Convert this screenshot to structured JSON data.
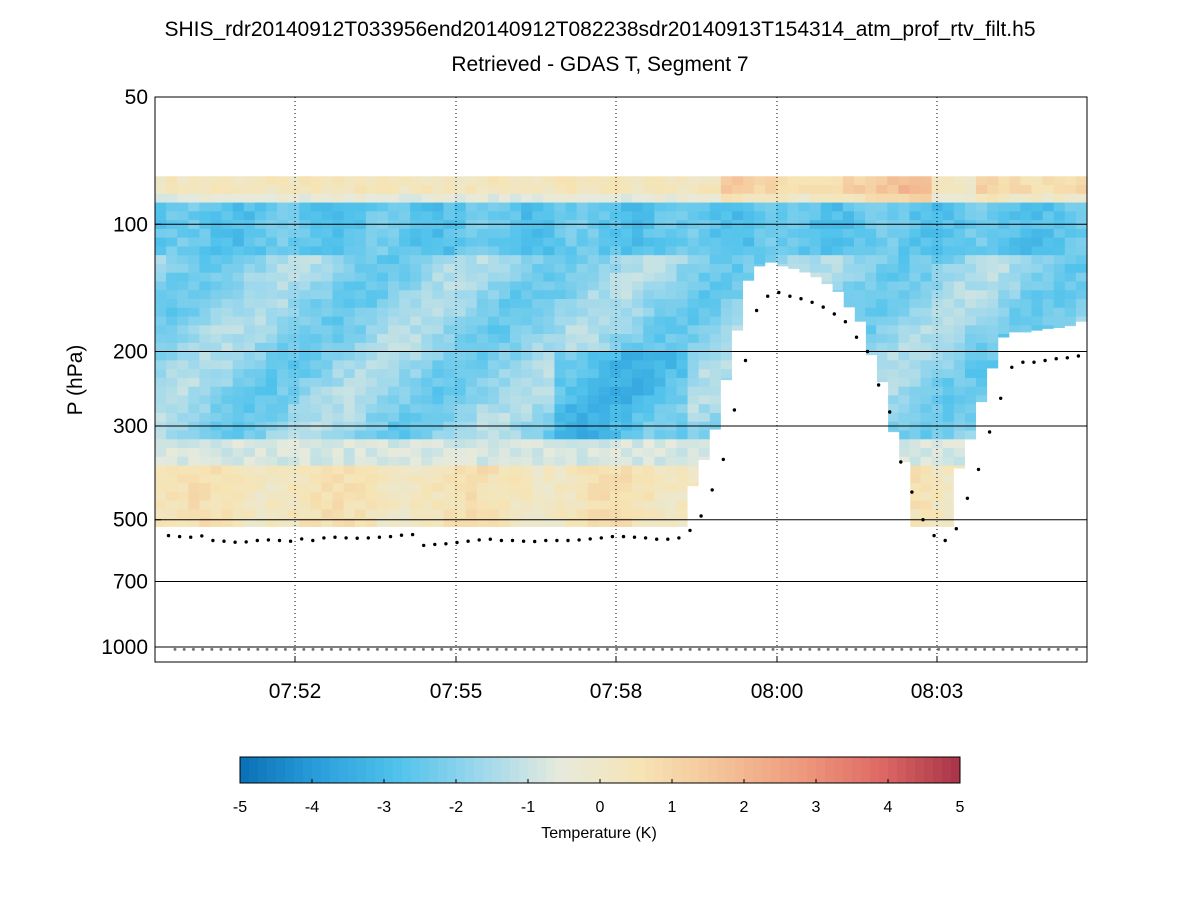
{
  "chart_data": {
    "type": "heatmap",
    "title": "SHIS_rdr20140912T033956end20140912T082238sdr20140913T154314_atm_prof_rtv_filt.h5",
    "subtitle": "Retrieved - GDAS T, Segment 7",
    "ylabel": "P (hPa)",
    "y_scale": "log",
    "y_reversed": true,
    "ylim": [
      50,
      1000
    ],
    "y_ticks": [
      50,
      100,
      200,
      300,
      500,
      700,
      1000
    ],
    "y_tick_labels": [
      "50",
      "100",
      "200",
      "300",
      "500",
      "700",
      "1000"
    ],
    "x_tick_labels": [
      "07:52",
      "07:55",
      "07:58",
      "08:00",
      "08:03"
    ],
    "horizontal_grid": [
      100,
      200,
      300,
      500,
      700,
      1000
    ],
    "colorbar": {
      "label": "Temperature (K)",
      "range": [
        -5,
        5
      ],
      "ticks": [
        -5,
        -4,
        -3,
        -2,
        -1,
        0,
        1,
        2,
        3,
        4,
        5
      ],
      "colors": [
        "#0a6fb5",
        "#2a9fdc",
        "#52c3ec",
        "#9dd8ec",
        "#e6eadd",
        "#f6e4b4",
        "#f4c398",
        "#ee9a7e",
        "#de6a64",
        "#a83348"
      ]
    },
    "cloud_top_pressure": [
      545,
      548,
      550,
      546,
      560,
      562,
      565,
      564,
      560,
      558,
      560,
      562,
      555,
      560,
      552,
      550,
      552,
      553,
      552,
      550,
      548,
      544,
      542,
      575,
      572,
      570,
      566,
      562,
      558,
      556,
      560,
      560,
      562,
      563,
      560,
      560,
      560,
      558,
      555,
      552,
      548,
      548,
      550,
      552,
      556,
      556,
      552,
      530,
      490,
      425,
      360,
      275,
      210,
      160,
      148,
      145,
      148,
      150,
      153,
      157,
      163,
      170,
      185,
      200,
      240,
      278,
      365,
      430,
      500,
      545,
      560,
      525,
      445,
      380,
      310,
      258,
      218,
      212,
      212,
      210,
      208,
      207,
      205,
      200
    ],
    "surface_pressure": 1013
  }
}
